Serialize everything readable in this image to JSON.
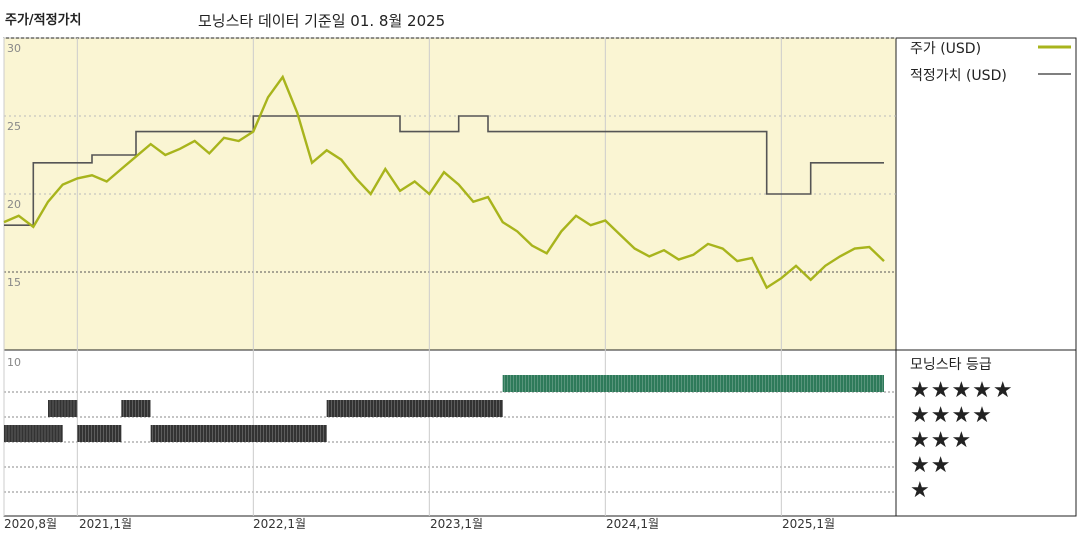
{
  "header": {
    "title": "주가/적정가치",
    "subtitle": "모닝스타 데이터 기준일 01. 8월 2025"
  },
  "legend": {
    "price_label": "주가 (USD)",
    "fair_value_label": "적정가치 (USD)",
    "rating_title": "모닝스타 등급",
    "star_rows": [
      "★★★★★",
      "★★★★",
      "★★★",
      "★★",
      "★"
    ]
  },
  "colors": {
    "price": "#a8b41c",
    "fair_value": "#555555",
    "plot_bg": "#faf5d3",
    "rating_5": "#2e7a5a",
    "rating_other": "#333333"
  },
  "chart_data": [
    {
      "type": "line",
      "ylim": [
        10,
        30
      ],
      "yticks": [
        30,
        25,
        20,
        15
      ],
      "xticks": [
        "2020,8월",
        "2021,1월",
        "2022,1월",
        "2023,1월",
        "2024,1월",
        "2025,1월"
      ],
      "series": [
        {
          "name": "주가 (USD)",
          "points": [
            [
              "2020-08",
              18.2
            ],
            [
              "2020-09",
              18.6
            ],
            [
              "2020-10",
              17.9
            ],
            [
              "2020-11",
              19.5
            ],
            [
              "2020-12",
              20.6
            ],
            [
              "2021-01",
              21.0
            ],
            [
              "2021-02",
              21.2
            ],
            [
              "2021-03",
              20.8
            ],
            [
              "2021-04",
              21.6
            ],
            [
              "2021-05",
              22.4
            ],
            [
              "2021-06",
              23.2
            ],
            [
              "2021-07",
              22.5
            ],
            [
              "2021-08",
              22.9
            ],
            [
              "2021-09",
              23.4
            ],
            [
              "2021-10",
              22.6
            ],
            [
              "2021-11",
              23.6
            ],
            [
              "2021-12",
              23.4
            ],
            [
              "2022-01",
              24.0
            ],
            [
              "2022-02",
              26.2
            ],
            [
              "2022-03",
              27.5
            ],
            [
              "2022-04",
              25.2
            ],
            [
              "2022-05",
              22.0
            ],
            [
              "2022-06",
              22.8
            ],
            [
              "2022-07",
              22.2
            ],
            [
              "2022-08",
              21.0
            ],
            [
              "2022-09",
              20.0
            ],
            [
              "2022-10",
              21.6
            ],
            [
              "2022-11",
              20.2
            ],
            [
              "2022-12",
              20.8
            ],
            [
              "2023-01",
              20.0
            ],
            [
              "2023-02",
              21.4
            ],
            [
              "2023-03",
              20.6
            ],
            [
              "2023-04",
              19.5
            ],
            [
              "2023-05",
              19.8
            ],
            [
              "2023-06",
              18.2
            ],
            [
              "2023-07",
              17.6
            ],
            [
              "2023-08",
              16.7
            ],
            [
              "2023-09",
              16.2
            ],
            [
              "2023-10",
              17.6
            ],
            [
              "2023-11",
              18.6
            ],
            [
              "2023-12",
              18.0
            ],
            [
              "2024-01",
              18.3
            ],
            [
              "2024-02",
              17.4
            ],
            [
              "2024-03",
              16.5
            ],
            [
              "2024-04",
              16.0
            ],
            [
              "2024-05",
              16.4
            ],
            [
              "2024-06",
              15.8
            ],
            [
              "2024-07",
              16.1
            ],
            [
              "2024-08",
              16.8
            ],
            [
              "2024-09",
              16.5
            ],
            [
              "2024-10",
              15.7
            ],
            [
              "2024-11",
              15.9
            ],
            [
              "2024-12",
              14.0
            ],
            [
              "2025-01",
              14.6
            ],
            [
              "2025-02",
              15.4
            ],
            [
              "2025-03",
              14.5
            ],
            [
              "2025-04",
              15.4
            ],
            [
              "2025-05",
              16.0
            ],
            [
              "2025-06",
              16.5
            ],
            [
              "2025-07",
              16.6
            ],
            [
              "2025-08",
              15.7
            ]
          ]
        },
        {
          "name": "적정가치 (USD)",
          "steps": [
            [
              "2020-08",
              18.0
            ],
            [
              "2020-10",
              22.0
            ],
            [
              "2021-02",
              22.5
            ],
            [
              "2021-05",
              24.0
            ],
            [
              "2022-01",
              25.0
            ],
            [
              "2022-11",
              24.0
            ],
            [
              "2023-03",
              25.0
            ],
            [
              "2023-05",
              24.0
            ],
            [
              "2024-12",
              20.0
            ],
            [
              "2025-03",
              22.0
            ],
            [
              "2025-08",
              22.0
            ]
          ]
        }
      ]
    },
    {
      "type": "bar",
      "title": "모닝스타 등급",
      "ylim": [
        0,
        10
      ],
      "yticks": [
        10
      ],
      "segments": [
        {
          "start": "2020-08",
          "end": "2020-12",
          "stars": 3
        },
        {
          "start": "2020-11",
          "end": "2021-01",
          "stars": 4
        },
        {
          "start": "2021-01",
          "end": "2021-04",
          "stars": 3
        },
        {
          "start": "2021-04",
          "end": "2021-06",
          "stars": 4
        },
        {
          "start": "2021-06",
          "end": "2022-06",
          "stars": 3
        },
        {
          "start": "2022-06",
          "end": "2023-06",
          "stars": 4
        },
        {
          "start": "2023-06",
          "end": "2025-08",
          "stars": 5
        }
      ]
    }
  ]
}
